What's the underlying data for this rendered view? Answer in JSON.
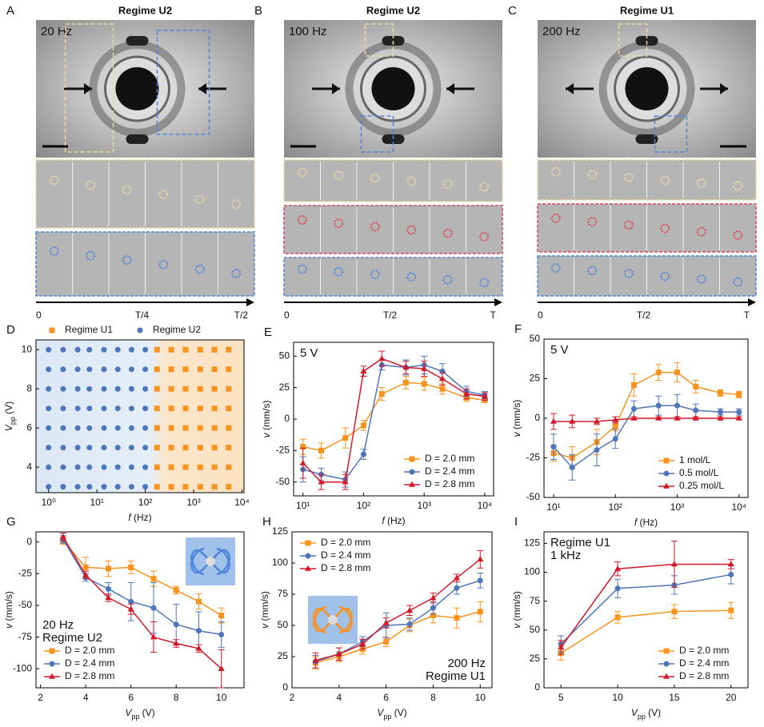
{
  "panels": [
    {
      "letter": "A",
      "title": "Regime U2",
      "freq": "20 Hz",
      "timeline": [
        "0",
        "T/4",
        "T/2"
      ]
    },
    {
      "letter": "B",
      "title": "Regime U2",
      "freq": "100 Hz",
      "timeline": [
        "0",
        "T/2",
        "T"
      ]
    },
    {
      "letter": "C",
      "title": "Regime U1",
      "freq": "200 Hz",
      "timeline": [
        "0",
        "T/2",
        "T"
      ]
    }
  ],
  "chart_data": [
    {
      "type": "scatter",
      "panel": "D",
      "xlog": true,
      "xlim": [
        0.55,
        11000
      ],
      "xticks": [
        {
          "value": 1,
          "label": "10⁰"
        },
        {
          "value": 10,
          "label": "10¹"
        },
        {
          "value": 100,
          "label": "10²"
        },
        {
          "value": 1000,
          "label": "10³"
        },
        {
          "value": 10000,
          "label": "10⁴"
        }
      ],
      "ylim": [
        2.7,
        10.5
      ],
      "yticks": [
        4,
        6,
        8,
        10
      ],
      "xlabel": [
        "f",
        " (Hz)"
      ],
      "ylabel": [
        "V",
        "pp",
        " (V)"
      ],
      "legend": "top",
      "series": [
        {
          "name": "Regime U1",
          "color": "#f7931e",
          "marker": "square",
          "x": [
            175,
            175,
            175,
            175,
            175,
            175,
            175,
            175,
            345,
            345,
            345,
            345,
            345,
            345,
            345,
            345,
            680,
            680,
            680,
            680,
            680,
            680,
            680,
            680,
            1370,
            1370,
            1370,
            1370,
            1370,
            1370,
            1370,
            1370,
            2700,
            2700,
            2700,
            2700,
            2700,
            2700,
            2700,
            2700,
            5300,
            5300,
            5300,
            5300,
            5300,
            5300,
            5300,
            5300
          ],
          "values": [
            3,
            4,
            5,
            6,
            7,
            8,
            9,
            10,
            3,
            4,
            5,
            6,
            7,
            8,
            9,
            10,
            3,
            4,
            5,
            6,
            7,
            8,
            9,
            10,
            3,
            4,
            5,
            6,
            7,
            8,
            9,
            10,
            3,
            4,
            5,
            6,
            7,
            8,
            9,
            10,
            3,
            4,
            5,
            6,
            7,
            8,
            9,
            10
          ]
        },
        {
          "name": "Regime U2",
          "color": "#4f76b8",
          "marker": "circle",
          "x": [
            1,
            1,
            1,
            1,
            1,
            1,
            1,
            1,
            2,
            2,
            2,
            2,
            2,
            2,
            2,
            2,
            4,
            4,
            4,
            4,
            4,
            4,
            4,
            4,
            7,
            7,
            7,
            7,
            7,
            7,
            7,
            7,
            14,
            14,
            14,
            14,
            14,
            14,
            14,
            14,
            27,
            27,
            27,
            27,
            27,
            27,
            27,
            27,
            52,
            52,
            52,
            52,
            52,
            52,
            52,
            52,
            100,
            100,
            100,
            100,
            100,
            100,
            100,
            100
          ],
          "values": [
            3,
            4,
            5,
            6,
            7,
            8,
            9,
            10,
            3,
            4,
            5,
            6,
            7,
            8,
            9,
            10,
            3,
            4,
            5,
            6,
            7,
            8,
            9,
            10,
            3,
            4,
            5,
            6,
            7,
            8,
            9,
            10,
            3,
            4,
            5,
            6,
            7,
            8,
            9,
            10,
            3,
            4,
            5,
            6,
            7,
            8,
            9,
            10,
            3,
            4,
            5,
            6,
            7,
            8,
            9,
            10,
            3,
            4,
            5,
            6,
            7,
            8,
            9,
            10
          ]
        }
      ]
    },
    {
      "type": "line",
      "panel": "E",
      "xlog": true,
      "xlim": [
        7,
        14000
      ],
      "xticks": [
        {
          "value": 10,
          "label": "10¹"
        },
        {
          "value": 100,
          "label": "10²"
        },
        {
          "value": 1000,
          "label": "10³"
        },
        {
          "value": 10000,
          "label": "10⁴"
        }
      ],
      "ylim": [
        -61,
        61
      ],
      "yticks": [
        -50,
        -25,
        0,
        25,
        50
      ],
      "xlabel": [
        "f",
        " (Hz)"
      ],
      "ylabel": [
        "v",
        " (mm/s)"
      ],
      "legend": "lower right",
      "annotations": [
        "5 V"
      ],
      "annotation_pos": "top-left",
      "x": [
        10,
        20,
        50,
        100,
        200,
        500,
        1000,
        2000,
        5000,
        10000
      ],
      "series": [
        {
          "name": "D = 2.0 mm",
          "color": "#f7931e",
          "marker": "square",
          "values": [
            -22,
            -25,
            -15,
            -5,
            20,
            29,
            28,
            24,
            17,
            15
          ],
          "errors": [
            6,
            6,
            8,
            4,
            5,
            5,
            5,
            4,
            3,
            2
          ]
        },
        {
          "name": "D = 2.4 mm",
          "color": "#4f76b8",
          "marker": "circle",
          "values": [
            -40,
            -44,
            -48,
            -28,
            43,
            41,
            43,
            38,
            22,
            19
          ],
          "errors": [
            10,
            5,
            6,
            4,
            4,
            6,
            7,
            6,
            4,
            3
          ]
        },
        {
          "name": "D = 2.8 mm",
          "color": "#d1192a",
          "marker": "triangle",
          "values": [
            -35,
            -50,
            -50,
            38,
            48,
            41,
            40,
            32,
            20,
            18
          ],
          "errors": [
            12,
            6,
            6,
            4,
            6,
            5,
            6,
            5,
            4,
            3
          ]
        }
      ]
    },
    {
      "type": "line",
      "panel": "F",
      "xlog": true,
      "xlim": [
        7,
        14000
      ],
      "xticks": [
        {
          "value": 10,
          "label": "10¹"
        },
        {
          "value": 100,
          "label": "10²"
        },
        {
          "value": 1000,
          "label": "10³"
        },
        {
          "value": 10000,
          "label": "10⁴"
        }
      ],
      "ylim": [
        -50,
        50
      ],
      "yticks": [
        -50,
        -25,
        0,
        25,
        50
      ],
      "xlabel": [
        "f",
        " (Hz)"
      ],
      "ylabel": [
        "v",
        " (mm/s)"
      ],
      "legend": "lower right",
      "annotations": [
        "5 V"
      ],
      "annotation_pos": "top-left",
      "x": [
        10,
        20,
        50,
        100,
        200,
        500,
        1000,
        2000,
        5000,
        10000
      ],
      "series": [
        {
          "name": "1 mol/L",
          "color": "#f7931e",
          "marker": "square",
          "values": [
            -22,
            -25,
            -15,
            -5,
            21,
            29,
            29,
            20,
            16,
            15
          ],
          "errors": [
            5,
            7,
            8,
            3,
            7,
            5,
            6,
            4,
            2,
            2
          ]
        },
        {
          "name": "0.5 mol/L",
          "color": "#4f76b8",
          "marker": "circle",
          "values": [
            -18,
            -31,
            -20,
            -13,
            6,
            8,
            8,
            5,
            4,
            4
          ],
          "errors": [
            8,
            8,
            10,
            6,
            5,
            6,
            7,
            4,
            2,
            2
          ]
        },
        {
          "name": "0.25 mol/L",
          "color": "#d1192a",
          "marker": "triangle",
          "values": [
            -2,
            -2,
            -2,
            -1,
            0,
            0,
            0,
            0,
            0,
            0
          ],
          "errors": [
            5,
            4,
            2,
            2,
            1,
            1,
            1,
            1,
            1,
            1
          ]
        }
      ]
    },
    {
      "type": "line",
      "panel": "G",
      "xlog": false,
      "xlim": [
        1.8,
        11
      ],
      "xticks": [
        2,
        4,
        6,
        8,
        10
      ],
      "ylim": [
        -115,
        8
      ],
      "yticks": [
        -100,
        -75,
        -50,
        -25,
        0
      ],
      "xlabel": [
        "V",
        "pp",
        " (V)"
      ],
      "ylabel": [
        "v",
        " (mm/s)"
      ],
      "legend": "lower left",
      "annotations": [
        "20 Hz",
        "Regime U2"
      ],
      "annotation_pos": "bottom-left",
      "x": [
        3,
        4,
        5,
        6,
        7,
        8,
        9,
        10
      ],
      "series": [
        {
          "name": "D = 2.0 mm",
          "color": "#f7931e",
          "marker": "square",
          "values": [
            1,
            -20,
            -21,
            -20,
            -29,
            -38,
            -47,
            -58
          ],
          "errors": [
            3,
            8,
            6,
            5,
            6,
            3,
            6,
            6
          ]
        },
        {
          "name": "D = 2.4 mm",
          "color": "#4f76b8",
          "marker": "circle",
          "values": [
            2,
            -28,
            -37,
            -47,
            -52,
            -65,
            -70,
            -73
          ],
          "errors": [
            3,
            3,
            5,
            15,
            20,
            16,
            15,
            10
          ]
        },
        {
          "name": "D = 2.8 mm",
          "color": "#d1192a",
          "marker": "triangle",
          "values": [
            4,
            -26,
            -44,
            -53,
            -75,
            -80,
            -84,
            -100
          ],
          "errors": [
            3,
            3,
            3,
            4,
            12,
            3,
            3,
            15
          ]
        }
      ]
    },
    {
      "type": "line",
      "panel": "H",
      "xlog": false,
      "xlim": [
        2,
        10.5
      ],
      "xticks": [
        2,
        4,
        6,
        8,
        10
      ],
      "ylim": [
        0,
        125
      ],
      "yticks": [
        0,
        25,
        50,
        75,
        100,
        125
      ],
      "xlabel": [
        "V",
        "pp",
        " (V)"
      ],
      "ylabel": [
        "v",
        " (mm/s)"
      ],
      "legend": "upper left",
      "annotations": [
        "200 Hz",
        "Regime U1"
      ],
      "annotation_pos": "bottom-right",
      "x": [
        3,
        4,
        5,
        6,
        7,
        8,
        9,
        10
      ],
      "series": [
        {
          "name": "D = 2.0 mm",
          "color": "#f7931e",
          "marker": "square",
          "values": [
            20,
            25,
            31,
            37,
            50,
            58,
            56,
            61
          ],
          "errors": [
            5,
            4,
            4,
            4,
            5,
            6,
            8,
            8
          ]
        },
        {
          "name": "D = 2.4 mm",
          "color": "#4f76b8",
          "marker": "circle",
          "values": [
            21,
            27,
            37,
            50,
            51,
            64,
            80,
            86
          ],
          "errors": [
            5,
            5,
            4,
            10,
            5,
            5,
            5,
            6
          ]
        },
        {
          "name": "D = 2.8 mm",
          "color": "#d1192a",
          "marker": "triangle",
          "values": [
            22,
            27,
            35,
            52,
            62,
            72,
            88,
            103
          ],
          "errors": [
            6,
            5,
            4,
            4,
            4,
            4,
            3,
            7
          ]
        }
      ]
    },
    {
      "type": "line",
      "panel": "I",
      "xlog": false,
      "xlim": [
        3.5,
        21.5
      ],
      "xticks": [
        5,
        10,
        15,
        20
      ],
      "ylim": [
        0,
        135
      ],
      "yticks": [
        0,
        25,
        50,
        75,
        100,
        125
      ],
      "xlabel": [
        "V",
        "pp",
        " (V)"
      ],
      "ylabel": [
        "v",
        " (mm/s)"
      ],
      "legend": "lower right",
      "annotations": [
        "Regime U1",
        "1 kHz"
      ],
      "annotation_pos": "top-left",
      "x": [
        5,
        10,
        15,
        20
      ],
      "series": [
        {
          "name": "D = 2.0 mm",
          "color": "#f7931e",
          "marker": "square",
          "values": [
            30,
            61,
            66,
            67
          ],
          "errors": [
            6,
            5,
            6,
            7
          ]
        },
        {
          "name": "D = 2.4 mm",
          "color": "#4f76b8",
          "marker": "circle",
          "values": [
            38,
            86,
            89,
            98
          ],
          "errors": [
            7,
            8,
            8,
            8
          ]
        },
        {
          "name": "D = 2.8 mm",
          "color": "#d1192a",
          "marker": "triangle",
          "values": [
            35,
            103,
            107,
            107
          ],
          "errors": [
            6,
            6,
            20,
            4
          ]
        }
      ]
    }
  ]
}
